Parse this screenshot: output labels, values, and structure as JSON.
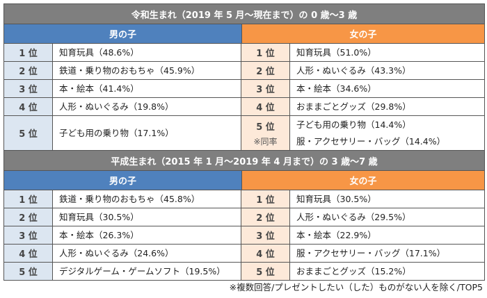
{
  "sections": [
    {
      "title": "令和生まれ（2019 年 5 月～現在まで）の 0 歳～3 歳",
      "boys_label": "男の子",
      "girls_label": "女の子",
      "rows": [
        {
          "rank": "1 位",
          "boy": [
            "知育玩具（48.6%）"
          ],
          "girl": [
            "知育玩具（51.0%）"
          ]
        },
        {
          "rank": "2 位",
          "boy": [
            "鉄道・乗り物のおもちゃ（45.9%）"
          ],
          "girl": [
            "人形・ぬいぐるみ（43.3%）"
          ]
        },
        {
          "rank": "3 位",
          "boy": [
            "本・絵本（41.4%）"
          ],
          "girl": [
            "本・絵本（34.6%）"
          ]
        },
        {
          "rank": "4 位",
          "boy": [
            "人形・ぬいぐるみ（19.8%）"
          ],
          "girl": [
            "おままごとグッズ（29.8%）"
          ]
        },
        {
          "rank": "5 位",
          "girl_note": "※同率",
          "boy": [
            "子ども用の乗り物（17.1%）"
          ],
          "girl": [
            "子ども用の乗り物（14.4%）",
            "服・アクセサリー・バッグ（14.4%）"
          ]
        }
      ]
    },
    {
      "title": "平成生まれ（2015 年 1 月～2019 年 4 月まで）の 3 歳～7 歳",
      "boys_label": "男の子",
      "girls_label": "女の子",
      "rows": [
        {
          "rank": "1 位",
          "boy": [
            "鉄道・乗り物のおもちゃ（45.8%）"
          ],
          "girl": [
            "知育玩具（30.5%）"
          ]
        },
        {
          "rank": "2 位",
          "boy": [
            "知育玩具（30.5%）"
          ],
          "girl": [
            "人形・ぬいぐるみ（29.5%）"
          ]
        },
        {
          "rank": "3 位",
          "boy": [
            "本・絵本（26.3%）"
          ],
          "girl": [
            "本・絵本（22.9%）"
          ]
        },
        {
          "rank": "4 位",
          "boy": [
            "人形・ぬいぐるみ（24.6%）"
          ],
          "girl": [
            "服・アクセサリー・バッグ（17.1%）"
          ]
        },
        {
          "rank": "5 位",
          "boy": [
            "デジタルゲーム・ゲームソフト（19.5%）"
          ],
          "girl": [
            "おままごとグッズ（15.2%）"
          ]
        }
      ]
    }
  ],
  "footnote": "※複数回答/プレゼントしたい（した）ものがない人を除く/TOP5",
  "colors": {
    "title_bg": "#7f7f7f",
    "boys": "#4f81bd",
    "girls": "#f79646",
    "boys_rank_bg": "#dce6f1",
    "girls_rank_bg": "#fde9d9"
  }
}
